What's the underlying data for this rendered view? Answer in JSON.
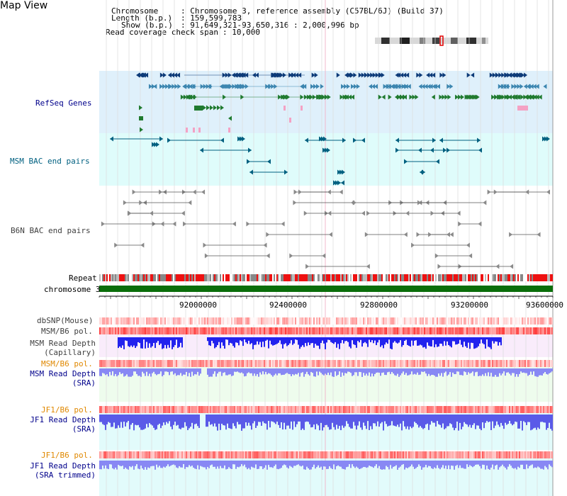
{
  "title": "Map View",
  "info": {
    "chromosome_label": "Chromosome",
    "chromosome_value": ": Chromosome 3, reference assembly (C57BL/6J) (Build 37)",
    "length_label": "Length (b.p.)",
    "length_value": ": 159,599,783",
    "show_label": "Show (b.p.)",
    "show_value": ": 91,649,321-93,650,316 : 2,000,996 bp",
    "coverage_label": "Read coverage check span",
    "coverage_value": ": 10,000"
  },
  "tracks": {
    "refseq": "RefSeq Genes",
    "msm_bac": "MSM BAC end pairs",
    "b6n_bac": "B6N BAC end pairs",
    "repeat": "Repeat",
    "chromosome": "chromosome 3",
    "dbsnp": "dbSNP(Mouse)",
    "msm_pol": "MSM/B6 pol.",
    "msm_depth_cap_1": "MSM Read Depth",
    "msm_depth_cap_2": "(Capillary)",
    "msm_pol2": "MSM/B6 pol.",
    "msm_depth_sra_1": "MSM Read Depth",
    "msm_depth_sra_2": "(SRA)",
    "jf1_pol": "JF1/B6 pol.",
    "jf1_depth_sra_1": "JF1 Read Depth",
    "jf1_depth_sra_2": "(SRA)",
    "jf1_pol2": "JF1/B6 pol.",
    "jf1_depth_trim_1": "JF1 Read Depth",
    "jf1_depth_trim_2": "(SRA trimmed)"
  },
  "axis_ticks": [
    "92000000",
    "92400000",
    "92800000",
    "93200000",
    "93600000"
  ],
  "colors": {
    "refseq_bg": "#dff0fb",
    "msm_bac_bg": "#dffcfb",
    "cap_bg": "#f9ecfb",
    "sra_bg": "#eefced",
    "jf1_bg": "#e2fbfb",
    "label_blue": "#00008b",
    "label_orange": "#e08800",
    "label_teal": "#006080",
    "gene_dark": "#0c3a78",
    "gene_blue": "#3c86b0",
    "gene_green": "#1f7a2f",
    "chromosome_green": "#0a6e0a",
    "depth_blue": "#2222ee",
    "depth_light": "#8888f4"
  }
}
